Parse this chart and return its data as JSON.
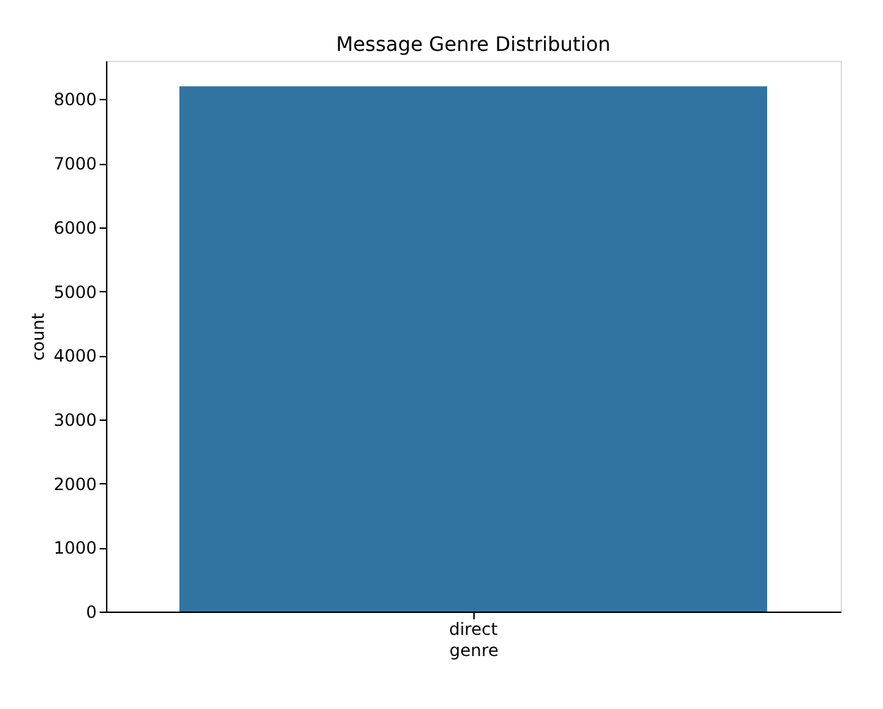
{
  "chart_data": {
    "type": "bar",
    "title": "Message Genre Distribution",
    "xlabel": "genre",
    "ylabel": "count",
    "categories": [
      "direct"
    ],
    "values": [
      8200
    ],
    "color": "#3274a1",
    "ylim": [
      0,
      8600
    ],
    "yticks": [
      0,
      1000,
      2000,
      3000,
      4000,
      5000,
      6000,
      7000,
      8000
    ],
    "grid": false
  }
}
